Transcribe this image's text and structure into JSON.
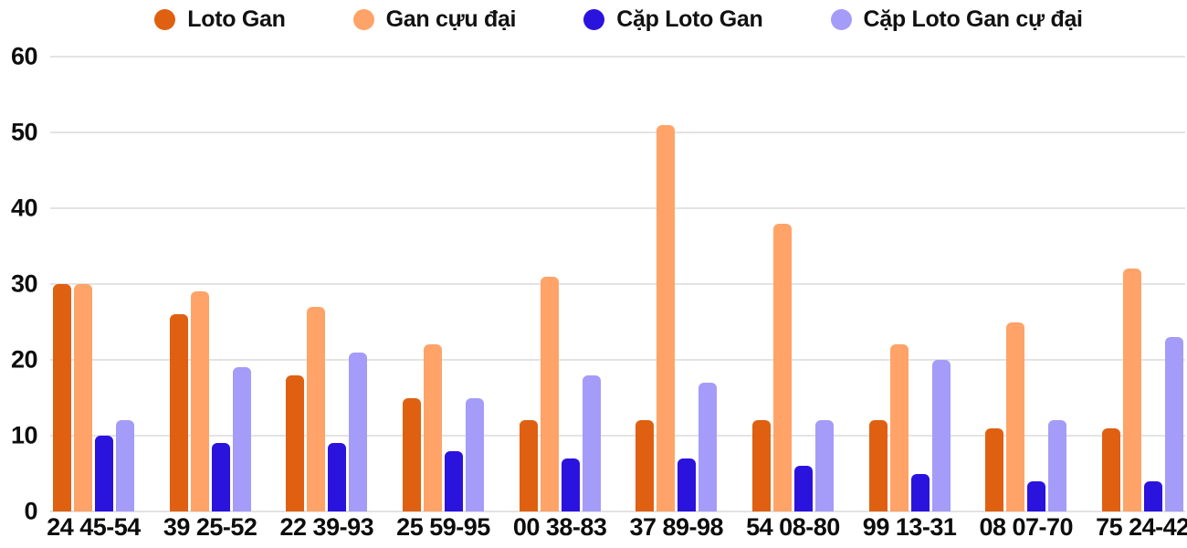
{
  "chart_data": {
    "type": "bar",
    "title": "",
    "xlabel": "",
    "ylabel": "",
    "ylim": [
      0,
      60
    ],
    "yticks": [
      0,
      10,
      20,
      30,
      40,
      50,
      60
    ],
    "grid": true,
    "legend_position": "top",
    "categories": [
      "24 45-54",
      "39 25-52",
      "22 39-93",
      "25 59-95",
      "00 38-83",
      "37 89-98",
      "54 08-80",
      "99 13-31",
      "08 07-70",
      "75 24-42"
    ],
    "series": [
      {
        "key": "loto-gan",
        "name": "Loto Gan",
        "color": "#DF6011",
        "values": [
          30,
          26,
          18,
          15,
          12,
          12,
          12,
          12,
          11,
          11
        ]
      },
      {
        "key": "gan-cuu-dai",
        "name": "Gan cựu đại",
        "color": "#FFA368",
        "values": [
          30,
          29,
          27,
          22,
          31,
          51,
          38,
          22,
          25,
          32
        ]
      },
      {
        "key": "cap-loto-gan",
        "name": "Cặp Loto Gan",
        "color": "#2B13DE",
        "values": [
          10,
          9,
          9,
          8,
          7,
          7,
          6,
          5,
          4,
          4
        ]
      },
      {
        "key": "cap-loto-gan-cu-dai",
        "name": "Cặp Loto Gan cự đại",
        "color": "#A49CF8",
        "values": [
          12,
          19,
          21,
          15,
          18,
          17,
          12,
          20,
          12,
          23
        ]
      }
    ]
  },
  "colors": {
    "background": "#ffffff",
    "gridline": "#e3e3e3",
    "text": "#0d0d0d"
  }
}
